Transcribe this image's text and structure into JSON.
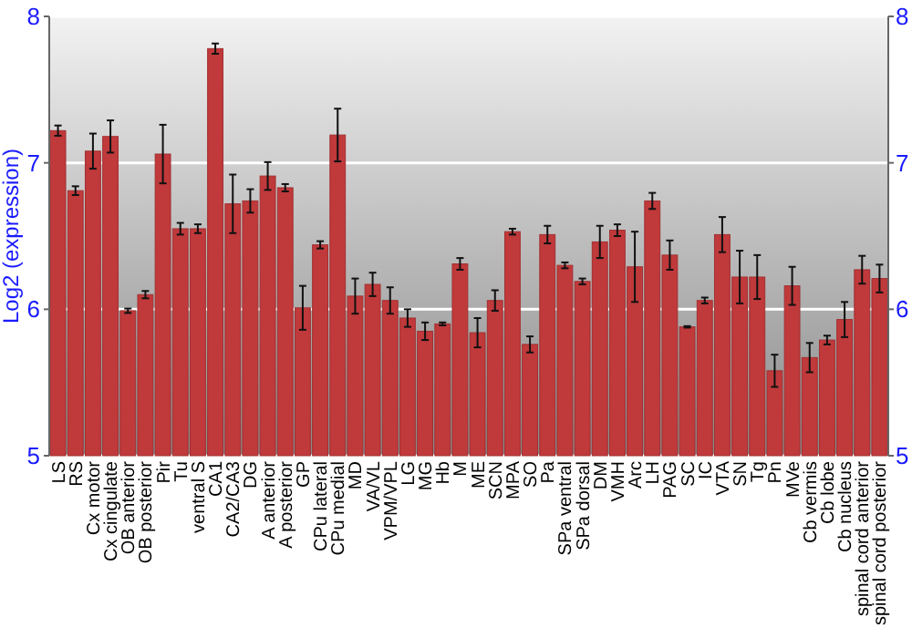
{
  "chart_data": {
    "type": "bar",
    "ylabel": "Log2 (expression)",
    "categories": [
      "LS",
      "RS",
      "Cx motor",
      "Cx cingulate",
      "OB anterior",
      "OB posterior",
      "Pir",
      "Tu",
      "ventral S",
      "CA1",
      "CA2/CA3",
      "DG",
      "A anterior",
      "A posterior",
      "GP",
      "CPu lateral",
      "CPu medial",
      "MD",
      "VA/VL",
      "VPM/VPL",
      "LG",
      "MG",
      "Hb",
      "M",
      "ME",
      "SCN",
      "MPA",
      "SO",
      "Pa",
      "SPa ventral",
      "SPa dorsal",
      "DM",
      "VMH",
      "Arc",
      "LH",
      "PAG",
      "SC",
      "IC",
      "VTA",
      "SN",
      "Tg",
      "Pn",
      "MVe",
      "Cb vermis",
      "Cb lobe",
      "Cb nucleus",
      "spinal cord anterior",
      "spinal cord posterior"
    ],
    "values": [
      7.22,
      6.81,
      7.08,
      7.18,
      5.99,
      6.1,
      7.06,
      6.55,
      6.55,
      7.78,
      6.72,
      6.74,
      6.91,
      6.83,
      6.01,
      6.44,
      7.19,
      6.09,
      6.17,
      6.06,
      5.94,
      5.85,
      5.9,
      6.31,
      5.84,
      6.06,
      6.53,
      5.76,
      6.51,
      6.3,
      6.19,
      6.46,
      6.54,
      6.29,
      6.74,
      6.37,
      5.88,
      6.06,
      6.51,
      6.22,
      6.22,
      5.58,
      6.16,
      5.67,
      5.79,
      5.93,
      6.27,
      6.21
    ],
    "errors": [
      0.035,
      0.03,
      0.12,
      0.11,
      0.015,
      0.025,
      0.2,
      0.04,
      0.03,
      0.035,
      0.2,
      0.08,
      0.095,
      0.025,
      0.15,
      0.025,
      0.18,
      0.12,
      0.08,
      0.09,
      0.06,
      0.06,
      0.01,
      0.04,
      0.1,
      0.07,
      0.02,
      0.055,
      0.06,
      0.02,
      0.02,
      0.11,
      0.04,
      0.24,
      0.055,
      0.1,
      0.005,
      0.02,
      0.12,
      0.18,
      0.15,
      0.11,
      0.13,
      0.1,
      0.03,
      0.12,
      0.095,
      0.095
    ],
    "color": "#c0393b",
    "ylim": [
      5,
      8
    ],
    "yticks": [
      5,
      6,
      7,
      8
    ],
    "y2lim": [
      5,
      8
    ],
    "y2ticks": [
      5,
      6,
      7,
      8
    ],
    "grid": "y"
  }
}
